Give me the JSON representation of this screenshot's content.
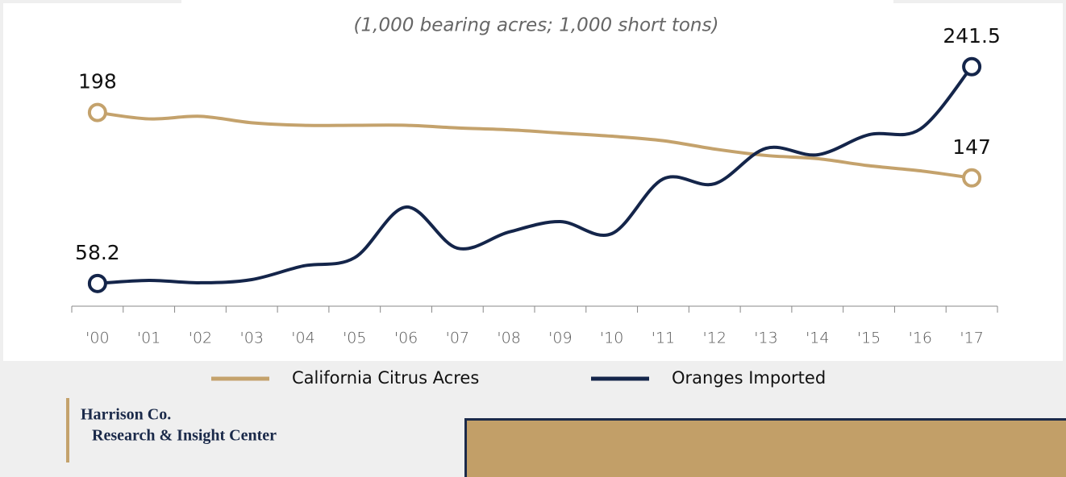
{
  "chart_data": {
    "type": "line",
    "subtitle": "(1,000 bearing acres; 1,000 short tons)",
    "categories": [
      "'00",
      "'01",
      "'02",
      "'03",
      "'04",
      "'05",
      "'06",
      "'07",
      "'08",
      "'09",
      "'10",
      "'11",
      "'12",
      "'13",
      "'14",
      "'15",
      "'16",
      "'17"
    ],
    "series": [
      {
        "name": "California Citrus Acres",
        "color": "#c4a26c",
        "values": [
          198,
          193,
          195,
          190,
          188,
          188,
          188,
          186,
          184.5,
          182,
          179.5,
          176,
          169.5,
          164.5,
          162,
          156.5,
          152.5,
          147
        ]
      },
      {
        "name": "Oranges Imported",
        "color": "#14254a",
        "axis": "y2",
        "values": [
          58.2,
          60.8,
          58.8,
          61.5,
          73,
          80,
          122.8,
          88,
          101.7,
          110.5,
          100.3,
          146.6,
          142.5,
          172.5,
          167,
          184,
          188.8,
          241.5
        ]
      }
    ],
    "ylim": [
      47,
      248
    ],
    "y2lim": [
      39,
      257
    ]
  },
  "footer": {
    "org": "Harrison Co.",
    "unit": "Research & Insight Center"
  }
}
